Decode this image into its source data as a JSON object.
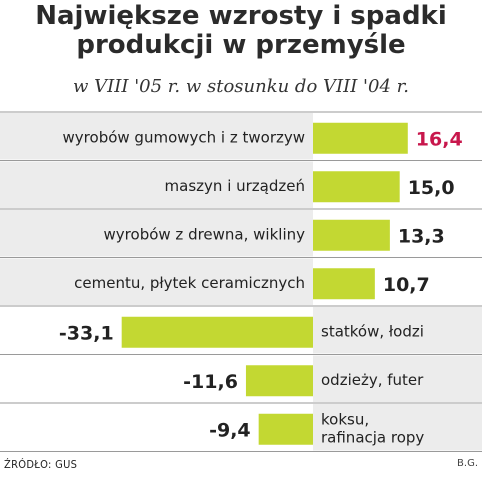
{
  "title_line1": "Największe wzrosty i spadki",
  "title_line2": "produkcji w przemyśle",
  "subtitle": "w VIII '05 r. w stosunku do VIII '04 r.",
  "source": "ŹRÓDŁO: GUS",
  "author": "B.G.",
  "colors": {
    "bar": "#c3d832",
    "highlight": "#c8174c",
    "text": "#222222",
    "panel": "#ececec"
  },
  "chart_data": {
    "type": "bar",
    "orientation": "horizontal",
    "categories": [
      [
        "wyrobów gumowych i z tworzyw"
      ],
      [
        "maszyn i urządzeń"
      ],
      [
        "wyrobów z drewna, wikliny"
      ],
      [
        "cementu, płytek ceramicznych"
      ],
      [
        "statków, łodzi"
      ],
      [
        "odzieży, futer"
      ],
      [
        "koksu,",
        "rafinacja ropy"
      ]
    ],
    "values": [
      16.4,
      15.0,
      13.3,
      10.7,
      -33.1,
      -11.6,
      -9.4
    ],
    "value_labels": [
      "16,4",
      "15,0",
      "13,3",
      "10,7",
      "-33,1",
      "-11,6",
      "-9,4"
    ],
    "highlight_index": 0
  }
}
